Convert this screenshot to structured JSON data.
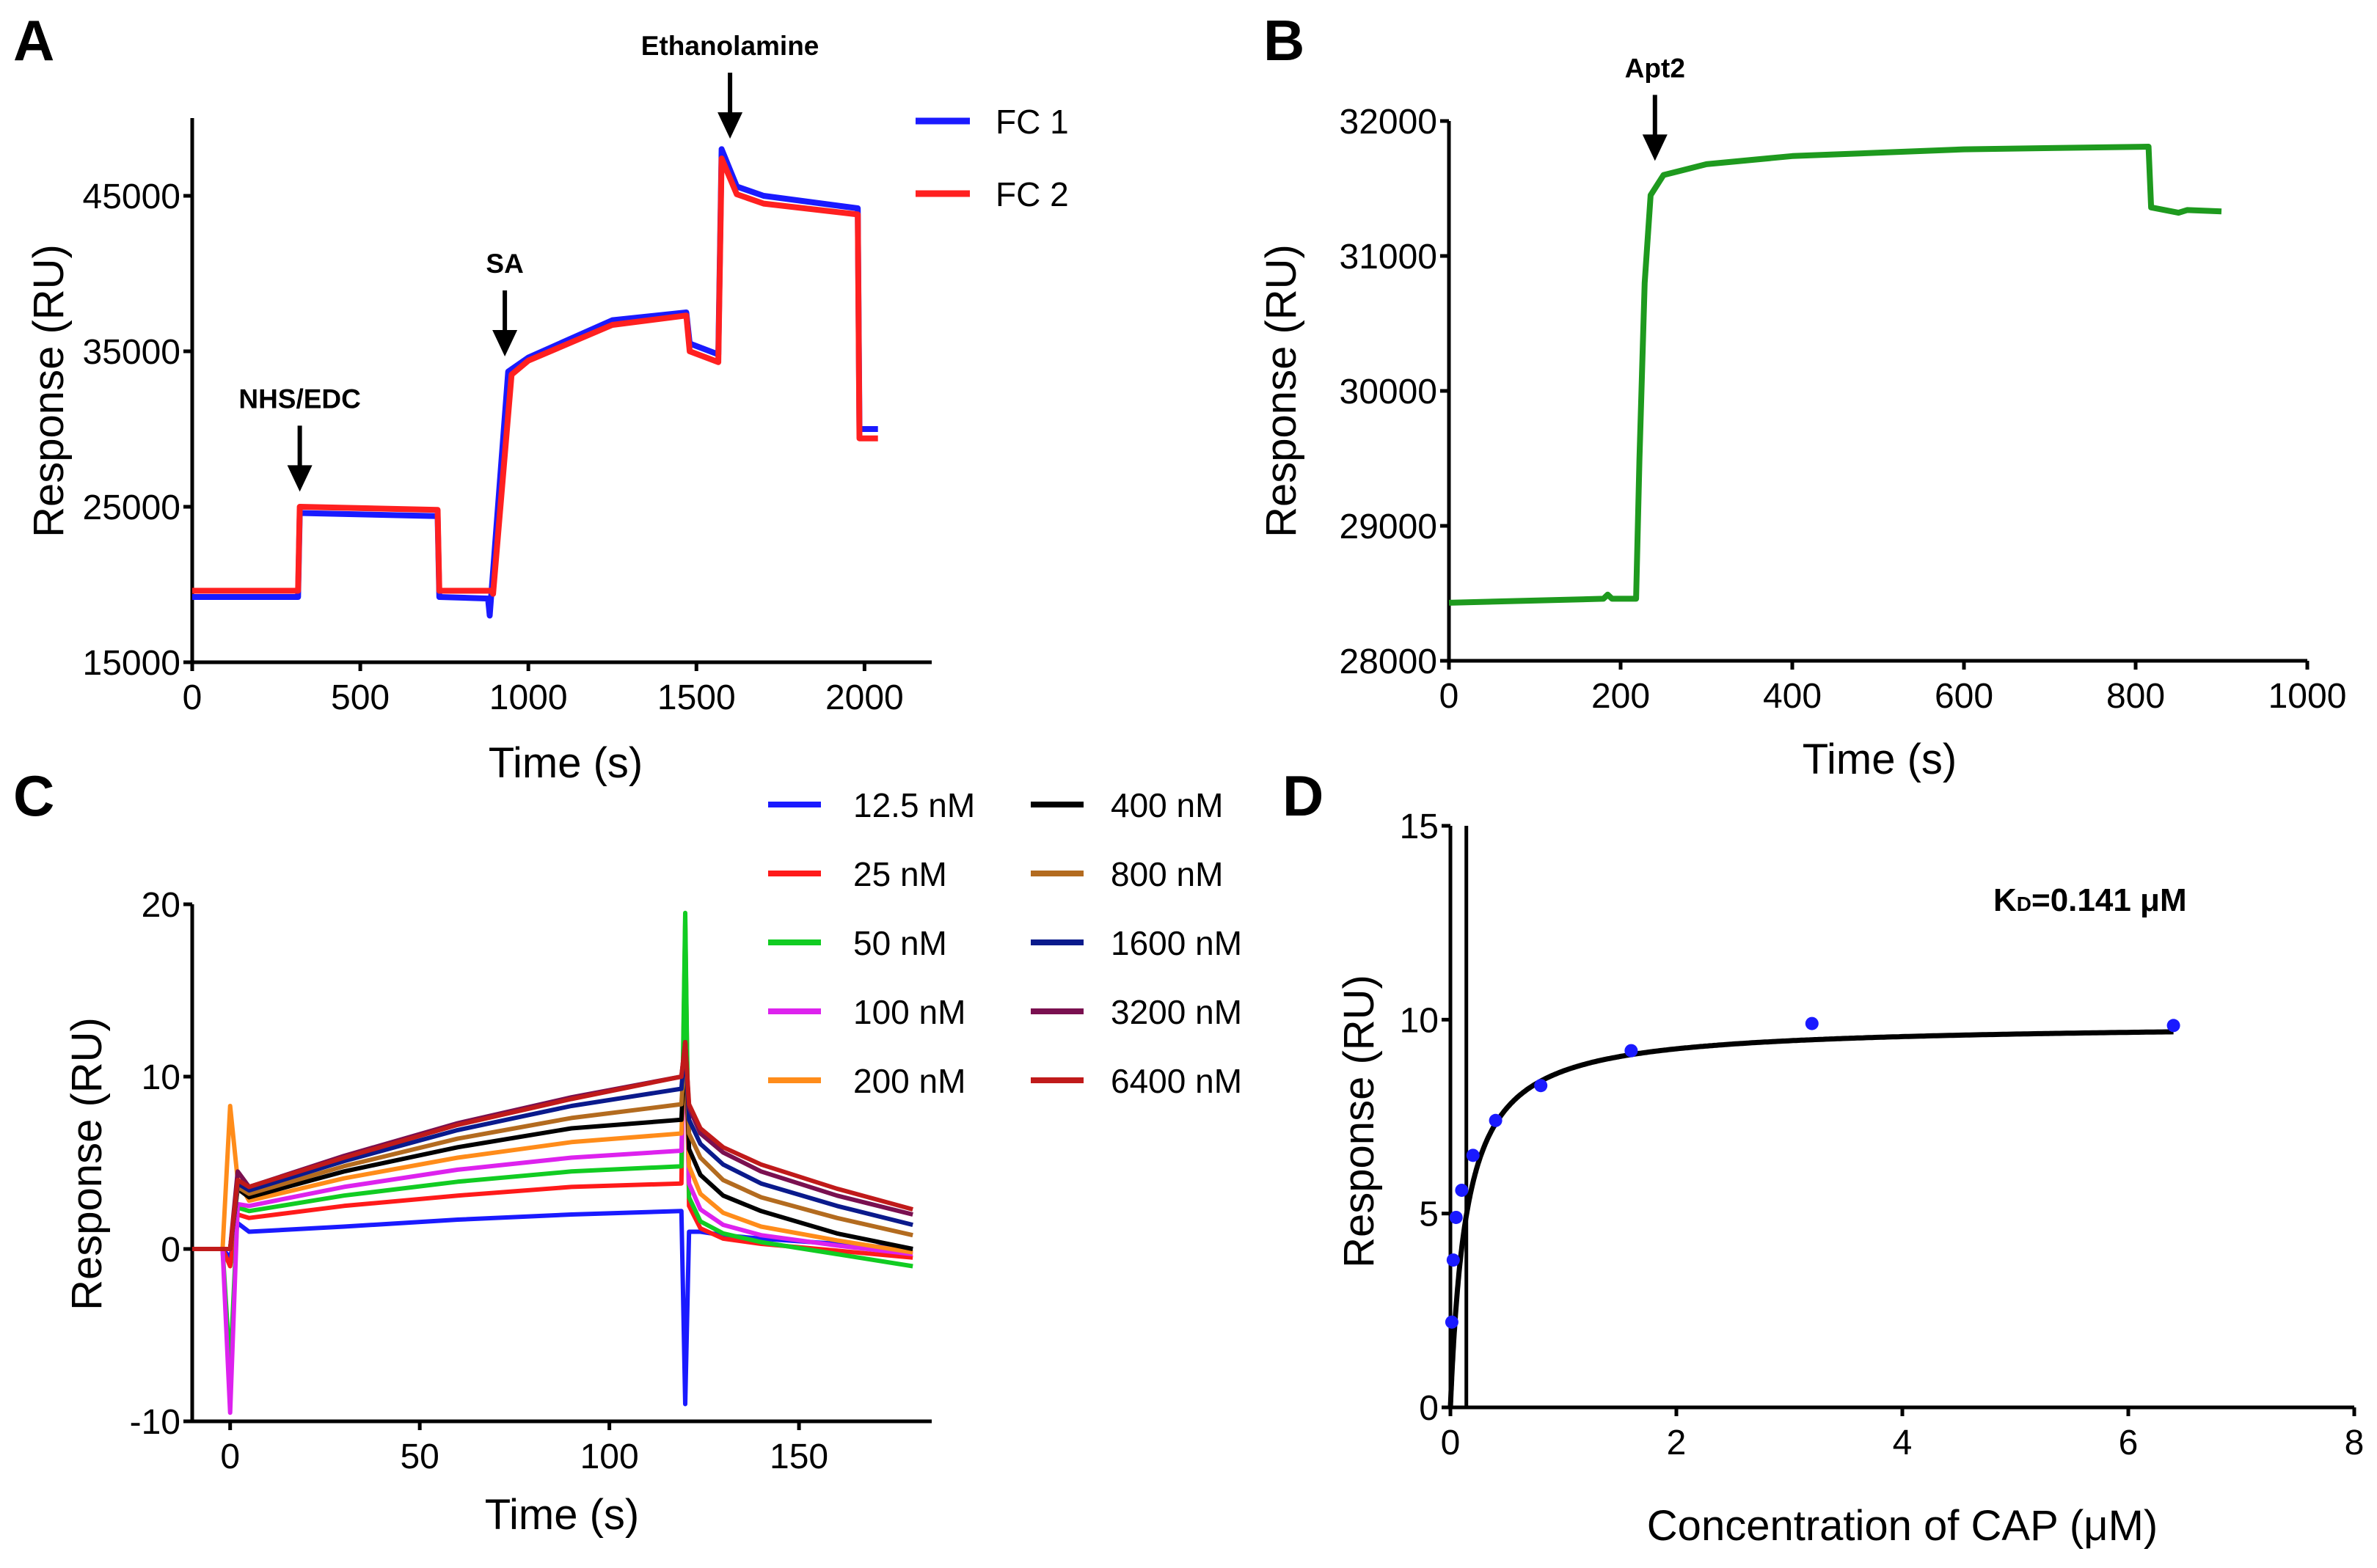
{
  "chart_data": [
    {
      "panel": "A",
      "type": "line",
      "xlabel": "Time (s)",
      "ylabel": "Response (RU)",
      "xlim": [
        0,
        2200
      ],
      "ylim": [
        15000,
        50000
      ],
      "xticks": [
        0,
        500,
        1000,
        1500,
        2000
      ],
      "yticks": [
        15000,
        25000,
        35000,
        45000
      ],
      "legend_position": "top-right",
      "annotations": [
        {
          "text": "NHS/EDC",
          "x": 320,
          "arrow_to_y": 25500
        },
        {
          "text": "SA",
          "x": 930,
          "arrow_to_y": 34200
        },
        {
          "text": "Ethanolamine",
          "x": 1600,
          "arrow_to_y": 48200
        }
      ],
      "series": [
        {
          "name": "FC 1",
          "color": "#1a1aff",
          "x": [
            0,
            315,
            320,
            730,
            735,
            880,
            885,
            940,
            1000,
            1250,
            1470,
            1480,
            1565,
            1575,
            1620,
            1700,
            1980,
            1985,
            2040
          ],
          "y": [
            19200,
            19200,
            24600,
            24400,
            19200,
            19100,
            18000,
            33700,
            34600,
            37000,
            37500,
            35500,
            34800,
            48000,
            45600,
            45000,
            44200,
            30000,
            30000
          ]
        },
        {
          "name": "FC 2",
          "color": "#ff2020",
          "x": [
            0,
            315,
            320,
            730,
            735,
            890,
            895,
            950,
            1000,
            1250,
            1470,
            1480,
            1565,
            1575,
            1620,
            1700,
            1980,
            1985,
            2040
          ],
          "y": [
            19600,
            19600,
            25000,
            24800,
            19600,
            19600,
            19400,
            33500,
            34400,
            36700,
            37300,
            35000,
            34300,
            47400,
            45100,
            44500,
            43800,
            29400,
            29400
          ]
        }
      ]
    },
    {
      "panel": "B",
      "type": "line",
      "xlabel": "Time (s)",
      "ylabel": "Response (RU)",
      "xlim": [
        0,
        1000
      ],
      "ylim": [
        28000,
        32000
      ],
      "xticks": [
        0,
        200,
        400,
        600,
        800,
        1000
      ],
      "yticks": [
        28000,
        29000,
        30000,
        31000,
        32000
      ],
      "annotations": [
        {
          "text": "Apt2",
          "x": 240,
          "arrow_to_y": 31650
        }
      ],
      "series": [
        {
          "name": "Apt2",
          "color": "#1e9a1e",
          "x": [
            0,
            180,
            185,
            190,
            218,
            222,
            228,
            235,
            250,
            300,
            400,
            600,
            815,
            818,
            850,
            860,
            900
          ],
          "y": [
            28430,
            28460,
            28490,
            28460,
            28460,
            29500,
            30800,
            31450,
            31600,
            31680,
            31740,
            31790,
            31810,
            31360,
            31320,
            31340,
            31330
          ]
        }
      ]
    },
    {
      "panel": "C",
      "type": "line",
      "xlabel": "Time (s)",
      "ylabel": "Response (RU)",
      "xlim": [
        -10,
        185
      ],
      "ylim": [
        -10,
        20
      ],
      "xticks": [
        0,
        50,
        100,
        150
      ],
      "yticks": [
        -10,
        0,
        10,
        20
      ],
      "legend_position": "top-right",
      "x": [
        -10,
        -2,
        0,
        2,
        5,
        30,
        60,
        90,
        119,
        120,
        121,
        124,
        130,
        140,
        160,
        180
      ],
      "series": [
        {
          "name": "12.5 nM",
          "color": "#1a1aff",
          "values": [
            0,
            0,
            -0.5,
            1.5,
            1.0,
            1.3,
            1.7,
            2.0,
            2.2,
            -9,
            1.0,
            1.0,
            0.8,
            0.6,
            0.3,
            0.0
          ]
        },
        {
          "name": "25 nM",
          "color": "#ff1a1a",
          "values": [
            0,
            0,
            -1,
            2,
            1.8,
            2.5,
            3.1,
            3.6,
            3.8,
            19,
            2.5,
            1.2,
            0.6,
            0.3,
            -0.1,
            -0.5
          ]
        },
        {
          "name": "50 nM",
          "color": "#11cc22",
          "values": [
            0,
            0,
            -7,
            2.4,
            2.2,
            3.1,
            3.9,
            4.5,
            4.8,
            19.5,
            3,
            1.6,
            0.9,
            0.4,
            -0.3,
            -1.0
          ]
        },
        {
          "name": "100 nM",
          "color": "#dd22ee",
          "values": [
            0,
            0,
            -9.5,
            2.6,
            2.5,
            3.6,
            4.6,
            5.3,
            5.7,
            12,
            3.8,
            2.3,
            1.4,
            0.8,
            0.2,
            -0.3
          ]
        },
        {
          "name": "200 nM",
          "color": "#ff8c1a",
          "values": [
            0,
            0,
            8.3,
            4,
            2.8,
            4.1,
            5.3,
            6.2,
            6.7,
            12,
            4.8,
            3.2,
            2.1,
            1.3,
            0.5,
            -0.2
          ]
        },
        {
          "name": "400 nM",
          "color": "#000000",
          "values": [
            0,
            0,
            0,
            3.5,
            3.0,
            4.5,
            5.9,
            7.0,
            7.5,
            12,
            5.8,
            4.3,
            3.1,
            2.2,
            0.9,
            0.0
          ]
        },
        {
          "name": "800 nM",
          "color": "#b36b1f",
          "values": [
            0,
            0,
            0,
            3.6,
            3.2,
            4.8,
            6.4,
            7.6,
            8.4,
            12,
            6.7,
            5.3,
            4.0,
            3.0,
            1.8,
            0.8
          ]
        },
        {
          "name": "1600 nM",
          "color": "#0a1a8c",
          "values": [
            0,
            0,
            0,
            3.8,
            3.4,
            5.1,
            6.9,
            8.3,
            9.3,
            12,
            7.5,
            6.1,
            4.9,
            3.8,
            2.5,
            1.4
          ]
        },
        {
          "name": "3200 nM",
          "color": "#7a1050",
          "values": [
            0,
            0,
            0,
            4.5,
            3.6,
            5.4,
            7.3,
            8.8,
            10.0,
            12,
            8.2,
            6.7,
            5.6,
            4.5,
            3.1,
            2.0
          ]
        },
        {
          "name": "6400 nM",
          "color": "#c01a1a",
          "values": [
            0,
            0,
            0,
            4,
            3.6,
            5.3,
            7.2,
            8.7,
            10.0,
            12,
            8.4,
            7.0,
            5.9,
            4.9,
            3.5,
            2.3
          ]
        }
      ]
    },
    {
      "panel": "D",
      "type": "scatter",
      "xlabel": "Concentration of CAP (μM)",
      "ylabel": "Response (RU)",
      "xlim": [
        0,
        8
      ],
      "ylim": [
        0,
        15
      ],
      "xticks": [
        0,
        2,
        4,
        6,
        8
      ],
      "yticks": [
        0,
        5,
        10,
        15
      ],
      "kd_label": "K",
      "kd_sub": "D",
      "kd_value": "=0.141 μM",
      "kd": 0.141,
      "bmax": 9.9,
      "point_color": "#1a1aff",
      "points": {
        "x": [
          0.0125,
          0.025,
          0.05,
          0.1,
          0.2,
          0.4,
          0.8,
          1.6,
          3.2,
          6.4
        ],
        "y": [
          2.2,
          3.8,
          4.9,
          5.6,
          6.5,
          7.4,
          8.3,
          9.2,
          9.9,
          9.85
        ]
      },
      "fit_range": [
        0,
        6.4
      ]
    }
  ],
  "panel_labels": [
    "A",
    "B",
    "C",
    "D"
  ]
}
